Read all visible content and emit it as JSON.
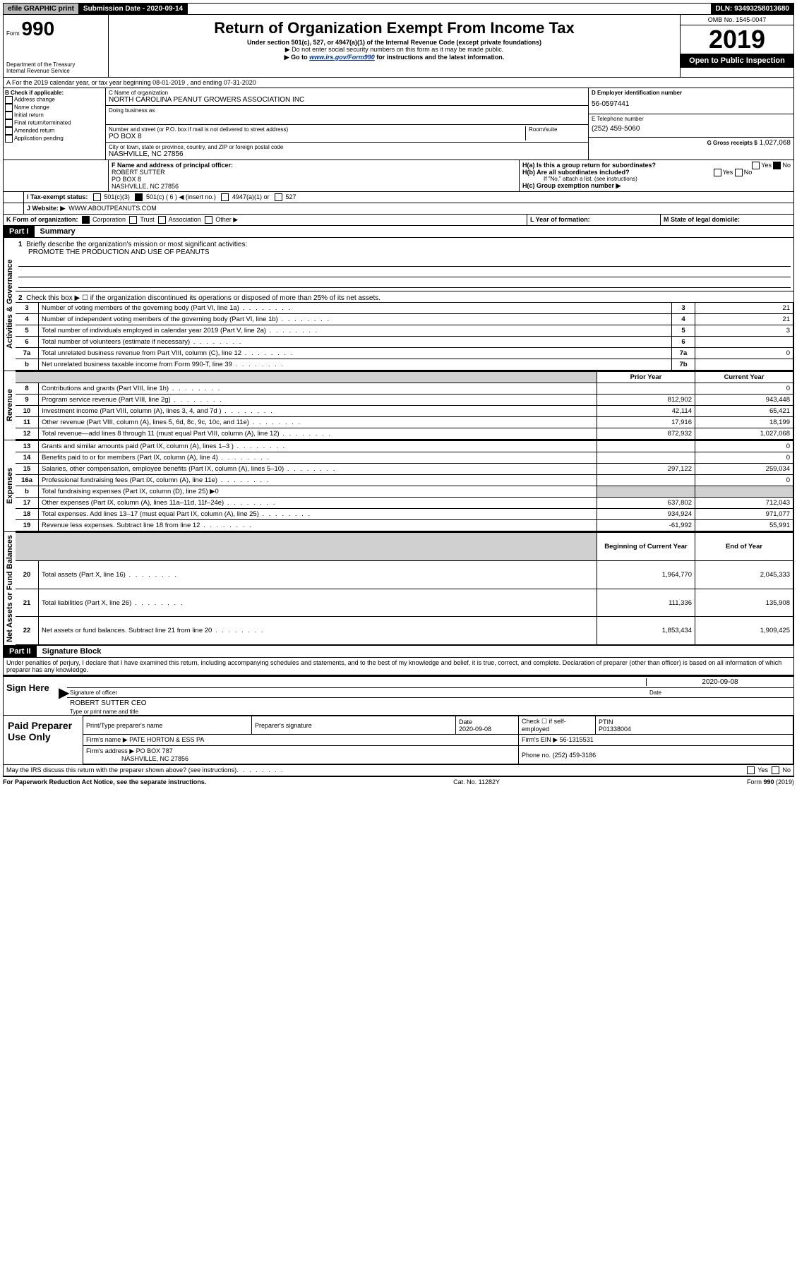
{
  "header": {
    "efile": "efile GRAPHIC print",
    "sub_label": "Submission Date - 2020-09-14",
    "dln": "DLN: 93493258013680"
  },
  "form": {
    "prefix": "Form",
    "number": "990",
    "dept": "Department of the Treasury",
    "irs": "Internal Revenue Service"
  },
  "title": {
    "main": "Return of Organization Exempt From Income Tax",
    "sub": "Under section 501(c), 527, or 4947(a)(1) of the Internal Revenue Code (except private foundations)",
    "note1": "▶ Do not enter social security numbers on this form as it may be made public.",
    "note2_pre": "▶ Go to ",
    "note2_link": "www.irs.gov/Form990",
    "note2_post": " for instructions and the latest information."
  },
  "right_header": {
    "omb": "OMB No. 1545-0047",
    "year": "2019",
    "open": "Open to Public Inspection"
  },
  "period": "A For the 2019 calendar year, or tax year beginning 08-01-2019    , and ending 07-31-2020",
  "check_b": {
    "title": "B Check if applicable:",
    "items": [
      "Address change",
      "Name change",
      "Initial return",
      "Final return/terminated",
      "Amended return",
      "Application pending"
    ]
  },
  "org": {
    "c_label": "C Name of organization",
    "name": "NORTH CAROLINA PEANUT GROWERS ASSOCIATION INC",
    "dba_label": "Doing business as",
    "addr_label": "Number and street (or P.O. box if mail is not delivered to street address)",
    "room_label": "Room/suite",
    "addr": "PO BOX 8",
    "city_label": "City or town, state or province, country, and ZIP or foreign postal code",
    "city": "NASHVILLE, NC  27856"
  },
  "right_info": {
    "d_label": "D Employer identification number",
    "ein": "56-0597441",
    "e_label": "E Telephone number",
    "phone": "(252) 459-5060",
    "g_label": "G Gross receipts $",
    "gross": "1,027,068"
  },
  "f": {
    "label": "F Name and address of principal officer:",
    "name": "ROBERT SUTTER",
    "addr1": "PO BOX 8",
    "addr2": "NASHVILLE, NC  27856"
  },
  "h": {
    "a": "H(a)  Is this a group return for subordinates?",
    "b": "H(b)  Are all subordinates included?",
    "b_note": "If \"No,\" attach a list. (see instructions)",
    "c": "H(c)  Group exemption number ▶",
    "yes": "Yes",
    "no": "No"
  },
  "i": {
    "label": "I  Tax-exempt status:",
    "opts": [
      "501(c)(3)",
      "501(c) ( 6 ) ◀ (insert no.)",
      "4947(a)(1) or",
      "527"
    ]
  },
  "j": {
    "label": "J  Website: ▶",
    "val": "WWW.ABOUTPEANUTS.COM"
  },
  "k": {
    "label": "K Form of organization:",
    "opts": [
      "Corporation",
      "Trust",
      "Association",
      "Other ▶"
    ]
  },
  "l": "L Year of formation:",
  "m": "M State of legal domicile:",
  "part1": {
    "num": "Part I",
    "title": "Summary"
  },
  "summary": {
    "q1": "Briefly describe the organization's mission or most significant activities:",
    "q1_val": "PROMOTE THE PRODUCTION AND USE OF PEANUTS",
    "q2": "Check this box ▶ ☐  if the organization discontinued its operations or disposed of more than 25% of its net assets.",
    "lines": [
      {
        "n": "3",
        "t": "Number of voting members of the governing body (Part VI, line 1a)",
        "box": "3",
        "v": "21"
      },
      {
        "n": "4",
        "t": "Number of independent voting members of the governing body (Part VI, line 1b)",
        "box": "4",
        "v": "21"
      },
      {
        "n": "5",
        "t": "Total number of individuals employed in calendar year 2019 (Part V, line 2a)",
        "box": "5",
        "v": "3"
      },
      {
        "n": "6",
        "t": "Total number of volunteers (estimate if necessary)",
        "box": "6",
        "v": ""
      },
      {
        "n": "7a",
        "t": "Total unrelated business revenue from Part VIII, column (C), line 12",
        "box": "7a",
        "v": "0"
      },
      {
        "n": "b",
        "t": "Net unrelated business taxable income from Form 990-T, line 39",
        "box": "7b",
        "v": ""
      }
    ]
  },
  "rev_exp": {
    "hdr_prior": "Prior Year",
    "hdr_curr": "Current Year",
    "sections": [
      {
        "label": "Revenue",
        "rows": [
          {
            "n": "8",
            "t": "Contributions and grants (Part VIII, line 1h)",
            "p": "",
            "c": "0"
          },
          {
            "n": "9",
            "t": "Program service revenue (Part VIII, line 2g)",
            "p": "812,902",
            "c": "943,448"
          },
          {
            "n": "10",
            "t": "Investment income (Part VIII, column (A), lines 3, 4, and 7d )",
            "p": "42,114",
            "c": "65,421"
          },
          {
            "n": "11",
            "t": "Other revenue (Part VIII, column (A), lines 5, 6d, 8c, 9c, 10c, and 11e)",
            "p": "17,916",
            "c": "18,199"
          },
          {
            "n": "12",
            "t": "Total revenue—add lines 8 through 11 (must equal Part VIII, column (A), line 12)",
            "p": "872,932",
            "c": "1,027,068"
          }
        ]
      },
      {
        "label": "Expenses",
        "rows": [
          {
            "n": "13",
            "t": "Grants and similar amounts paid (Part IX, column (A), lines 1–3 )",
            "p": "",
            "c": "0"
          },
          {
            "n": "14",
            "t": "Benefits paid to or for members (Part IX, column (A), line 4)",
            "p": "",
            "c": "0"
          },
          {
            "n": "15",
            "t": "Salaries, other compensation, employee benefits (Part IX, column (A), lines 5–10)",
            "p": "297,122",
            "c": "259,034"
          },
          {
            "n": "16a",
            "t": "Professional fundraising fees (Part IX, column (A), line 11e)",
            "p": "",
            "c": "0"
          },
          {
            "n": "b",
            "t": "Total fundraising expenses (Part IX, column (D), line 25) ▶0",
            "p": null,
            "c": null
          },
          {
            "n": "17",
            "t": "Other expenses (Part IX, column (A), lines 11a–11d, 11f–24e)",
            "p": "637,802",
            "c": "712,043"
          },
          {
            "n": "18",
            "t": "Total expenses. Add lines 13–17 (must equal Part IX, column (A), line 25)",
            "p": "934,924",
            "c": "971,077"
          },
          {
            "n": "19",
            "t": "Revenue less expenses. Subtract line 18 from line 12",
            "p": "-61,992",
            "c": "55,991"
          }
        ]
      },
      {
        "label": "Net Assets or Fund Balances",
        "hdr_p": "Beginning of Current Year",
        "hdr_c": "End of Year",
        "rows": [
          {
            "n": "20",
            "t": "Total assets (Part X, line 16)",
            "p": "1,964,770",
            "c": "2,045,333"
          },
          {
            "n": "21",
            "t": "Total liabilities (Part X, line 26)",
            "p": "111,336",
            "c": "135,908"
          },
          {
            "n": "22",
            "t": "Net assets or fund balances. Subtract line 21 from line 20",
            "p": "1,853,434",
            "c": "1,909,425"
          }
        ]
      }
    ]
  },
  "part2": {
    "num": "Part II",
    "title": "Signature Block"
  },
  "perjury": "Under penalties of perjury, I declare that I have examined this return, including accompanying schedules and statements, and to the best of my knowledge and belief, it is true, correct, and complete. Declaration of preparer (other than officer) is based on all information of which preparer has any knowledge.",
  "sign": {
    "here": "Sign Here",
    "sig_officer": "Signature of officer",
    "date": "Date",
    "date_val": "2020-09-08",
    "name": "ROBERT SUTTER CEO",
    "name_label": "Type or print name and title"
  },
  "prep": {
    "label": "Paid Preparer Use Only",
    "h1": "Print/Type preparer's name",
    "h2": "Preparer's signature",
    "h3": "Date",
    "h3_val": "2020-09-08",
    "h4": "Check ☐ if self-employed",
    "h5": "PTIN",
    "ptin": "P01338004",
    "firm_name_l": "Firm's name    ▶",
    "firm_name": "PATE HORTON & ESS PA",
    "firm_ein_l": "Firm's EIN ▶",
    "firm_ein": "56-1315531",
    "firm_addr_l": "Firm's address ▶",
    "firm_addr": "PO BOX 787",
    "firm_city": "NASHVILLE, NC  27856",
    "phone_l": "Phone no.",
    "phone": "(252) 459-3186"
  },
  "discuss": "May the IRS discuss this return with the preparer shown above? (see instructions)",
  "footer": {
    "l": "For Paperwork Reduction Act Notice, see the separate instructions.",
    "c": "Cat. No. 11282Y",
    "r": "Form 990 (2019)"
  }
}
